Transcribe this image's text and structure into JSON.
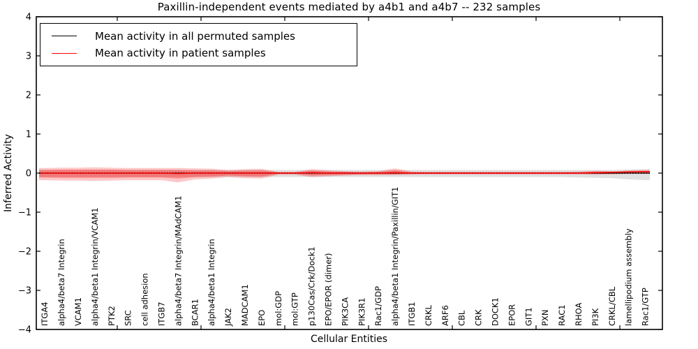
{
  "figure": {
    "title": "Paxillin-independent events mediated by a4b1 and a4b7 -- 232 samples",
    "xlabel": "Cellular Entities",
    "ylabel": "Inferred Activity"
  },
  "legend": {
    "items": [
      {
        "label": "Mean activity in all permuted samples",
        "color": "#000000"
      },
      {
        "label": "Mean activity in patient samples",
        "color": "#ff0000"
      }
    ]
  },
  "chart_data": {
    "type": "line",
    "title": "Paxillin-independent events mediated by a4b1 and a4b7 -- 232 samples",
    "xlabel": "Cellular Entities",
    "ylabel": "Inferred Activity",
    "ylim": [
      -4,
      4
    ],
    "ytick_values": [
      4,
      3,
      2,
      1,
      0,
      -1,
      -2,
      -3,
      -4
    ],
    "ytick_labels": [
      "4",
      "3",
      "2",
      "1",
      "0",
      "−1",
      "−2",
      "−3",
      "−4"
    ],
    "grid": false,
    "legend_position": "upper left",
    "colors": {
      "permuted": "#000000",
      "patient": "#ff0000",
      "permuted_band": "#000000",
      "patient_band": "#ff0000"
    },
    "categories": [
      "ITGA4",
      "alpha4/beta7 Integrin",
      "VCAM1",
      "alpha4/beta1 Integrin/VCAM1",
      "PTK2",
      "SRC",
      "cell adhesion",
      "ITGB7",
      "alpha4/beta7 Integrin/MAdCAM1",
      "BCAR1",
      "alpha4/beta1 Integrin",
      "JAK2",
      "MADCAM1",
      "EPO",
      "mol:GDP",
      "mol:GTP",
      "p130Cas/Crk/Dock1",
      "EPO/EPOR (dimer)",
      "PIK3CA",
      "PIK3R1",
      "Rac1/GDP",
      "alpha4/beta1 Integrin/Paxillin/GIT1",
      "ITGB1",
      "CRKL",
      "ARF6",
      "CBL",
      "CRK",
      "DOCK1",
      "EPOR",
      "GIT1",
      "PXN",
      "RAC1",
      "RHOA",
      "PI3K",
      "CRKL/CBL",
      "lamellipodium assembly",
      "Rac1/GTP"
    ],
    "series": [
      {
        "name": "Mean activity in all permuted samples",
        "color": "#000000",
        "style": "dotted",
        "values": [
          0,
          0,
          0,
          0,
          0,
          0,
          0,
          0,
          0,
          0,
          0,
          0,
          0,
          0,
          0,
          0,
          0,
          0,
          0,
          0,
          0,
          0,
          0,
          0,
          0,
          0,
          0,
          0,
          0,
          0,
          0,
          0,
          0,
          0,
          0,
          0,
          0
        ]
      },
      {
        "name": "Mean activity in patient samples",
        "color": "#ff0000",
        "style": "solid",
        "values": [
          0,
          0,
          0,
          0,
          0,
          0,
          0,
          0,
          -0.01,
          0,
          0,
          0,
          0,
          0,
          0,
          0,
          0.01,
          0,
          0,
          0,
          0,
          0.01,
          0,
          0,
          0,
          0,
          0,
          0,
          0,
          0,
          0,
          0,
          0,
          0.01,
          0.02,
          0.03,
          0.04
        ]
      }
    ],
    "bands": [
      {
        "name": "permuted-sample-range",
        "color": "#000000",
        "opacity": 0.12,
        "upper": [
          0.08,
          0.08,
          0.08,
          0.08,
          0.08,
          0.08,
          0.08,
          0.08,
          0.08,
          0.08,
          0.08,
          0.08,
          0.08,
          0.08,
          0.08,
          0.08,
          0.08,
          0.08,
          0.08,
          0.08,
          0.08,
          0.08,
          0.08,
          0.08,
          0.08,
          0.08,
          0.08,
          0.08,
          0.08,
          0.08,
          0.08,
          0.08,
          0.08,
          0.08,
          0.08,
          0.09,
          0.1
        ],
        "lower": [
          -0.1,
          -0.1,
          -0.1,
          -0.1,
          -0.1,
          -0.1,
          -0.1,
          -0.1,
          -0.1,
          -0.1,
          -0.1,
          -0.1,
          -0.1,
          -0.1,
          -0.1,
          -0.1,
          -0.1,
          -0.1,
          -0.1,
          -0.1,
          -0.1,
          -0.1,
          -0.1,
          -0.1,
          -0.1,
          -0.1,
          -0.1,
          -0.1,
          -0.1,
          -0.1,
          -0.1,
          -0.1,
          -0.11,
          -0.12,
          -0.13,
          -0.16,
          -0.18
        ]
      },
      {
        "name": "patient-sample-outer-band",
        "color": "#ff0000",
        "opacity": 0.22,
        "upper": [
          0.13,
          0.14,
          0.14,
          0.15,
          0.14,
          0.13,
          0.13,
          0.13,
          0.13,
          0.12,
          0.11,
          0.08,
          0.1,
          0.11,
          0.03,
          0.03,
          0.1,
          0.07,
          0.05,
          0.04,
          0.05,
          0.12,
          0.04,
          0.03,
          0.03,
          0.03,
          0.03,
          0.03,
          0.03,
          0.03,
          0.03,
          0.03,
          0.04,
          0.06,
          0.05,
          0.07,
          0.08
        ],
        "lower": [
          -0.18,
          -0.19,
          -0.19,
          -0.2,
          -0.19,
          -0.18,
          -0.18,
          -0.18,
          -0.24,
          -0.16,
          -0.14,
          -0.1,
          -0.13,
          -0.14,
          -0.04,
          -0.04,
          -0.1,
          -0.08,
          -0.06,
          -0.05,
          -0.05,
          -0.05,
          -0.04,
          -0.03,
          -0.03,
          -0.03,
          -0.03,
          -0.03,
          -0.03,
          -0.03,
          -0.03,
          -0.03,
          -0.03,
          -0.04,
          -0.03,
          -0.02,
          -0.02
        ]
      },
      {
        "name": "patient-sample-inner-band",
        "color": "#ff0000",
        "opacity": 0.3,
        "upper": [
          0.08,
          0.09,
          0.09,
          0.09,
          0.09,
          0.08,
          0.08,
          0.08,
          0.08,
          0.07,
          0.07,
          0.05,
          0.06,
          0.07,
          0.02,
          0.02,
          0.06,
          0.04,
          0.03,
          0.02,
          0.03,
          0.07,
          0.02,
          0.02,
          0.02,
          0.02,
          0.02,
          0.02,
          0.02,
          0.02,
          0.02,
          0.02,
          0.02,
          0.04,
          0.03,
          0.04,
          0.05
        ],
        "lower": [
          -0.11,
          -0.12,
          -0.12,
          -0.12,
          -0.12,
          -0.11,
          -0.11,
          -0.11,
          -0.14,
          -0.1,
          -0.09,
          -0.06,
          -0.08,
          -0.09,
          -0.02,
          -0.02,
          -0.06,
          -0.05,
          -0.04,
          -0.03,
          -0.03,
          -0.03,
          -0.02,
          -0.02,
          -0.02,
          -0.02,
          -0.02,
          -0.02,
          -0.02,
          -0.02,
          -0.02,
          -0.02,
          -0.02,
          -0.02,
          -0.02,
          -0.01,
          -0.01
        ]
      }
    ]
  }
}
